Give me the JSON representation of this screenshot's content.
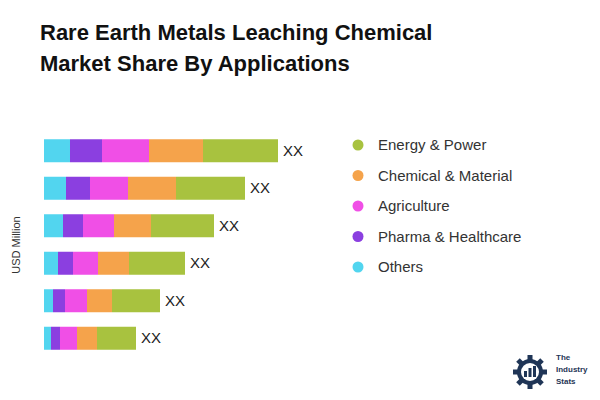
{
  "chart_data": {
    "type": "bar",
    "title": "Rare Earth Metals Leaching Chemical Market Share By Applications",
    "orientation": "horizontal",
    "stacked": true,
    "tick_labels": false,
    "grid": false,
    "legend": "right",
    "y_label": "USD Million",
    "xlim": [
      0,
      250
    ],
    "categories": [
      null,
      null,
      null,
      null,
      null,
      null
    ],
    "series": [
      {
        "name": "Others",
        "color": "#52d5ef",
        "values": [
          26,
          22,
          19,
          14,
          9,
          7
        ]
      },
      {
        "name": "Pharma & Healthcare",
        "color": "#8b3fe0",
        "values": [
          32,
          24,
          20,
          15,
          12,
          9
        ]
      },
      {
        "name": "Agriculture",
        "color": "#f04fe6",
        "values": [
          47,
          38,
          31,
          25,
          22,
          17
        ]
      },
      {
        "name": "Chemical & Material",
        "color": "#f5a34b",
        "values": [
          54,
          48,
          37,
          31,
          25,
          20
        ]
      },
      {
        "name": "Energy & Power",
        "color": "#a8c23f",
        "values": [
          75,
          69,
          63,
          56,
          48,
          39
        ],
        "value_labels": [
          "XX",
          "XX",
          "XX",
          "XX",
          "XX",
          "XX"
        ]
      }
    ],
    "annotations": [
      "The",
      "Industry",
      "Stats"
    ]
  }
}
